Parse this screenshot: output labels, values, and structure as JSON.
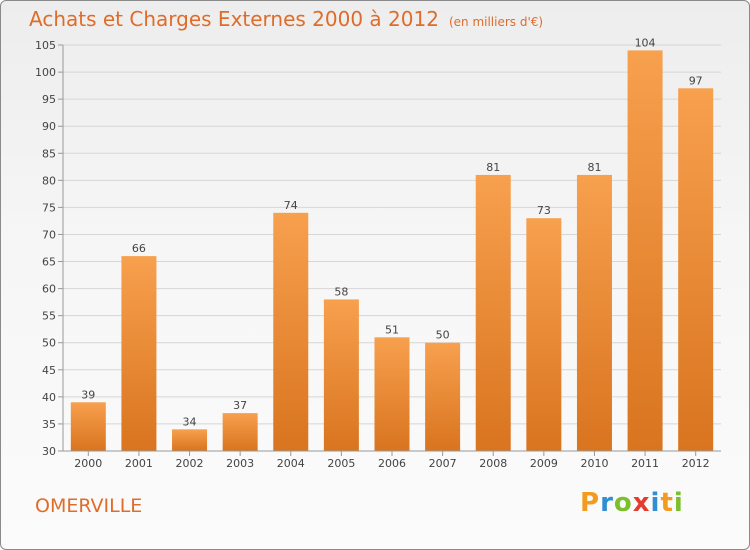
{
  "header": {
    "title": "Achats et Charges Externes 2000 à 2012",
    "subtitle": "(en milliers d'€)"
  },
  "footer": {
    "commune": "OMERVILLE",
    "logo_text": "Proxiti",
    "logo_colors": [
      "#f29b1e",
      "#2f8fd1",
      "#7bbf2a",
      "#e53b2f",
      "#2f8fd1",
      "#f29b1e",
      "#7bbf2a"
    ]
  },
  "colors": {
    "bar_light": "#f7a04e",
    "bar_dark": "#d9741f",
    "text_orange": "#e06c2a"
  },
  "chart_data": {
    "type": "bar",
    "title": "Achats et Charges Externes 2000 à 2012",
    "subtitle": "(en milliers d'€)",
    "categories": [
      "2000",
      "2001",
      "2002",
      "2003",
      "2004",
      "2005",
      "2006",
      "2007",
      "2008",
      "2009",
      "2010",
      "2011",
      "2012"
    ],
    "values": [
      39,
      66,
      34,
      37,
      74,
      58,
      51,
      50,
      81,
      73,
      81,
      104,
      97
    ],
    "ylim": [
      30,
      105
    ],
    "yticks": [
      30,
      35,
      40,
      45,
      50,
      55,
      60,
      65,
      70,
      75,
      80,
      85,
      90,
      95,
      100,
      105
    ],
    "grid": true
  }
}
